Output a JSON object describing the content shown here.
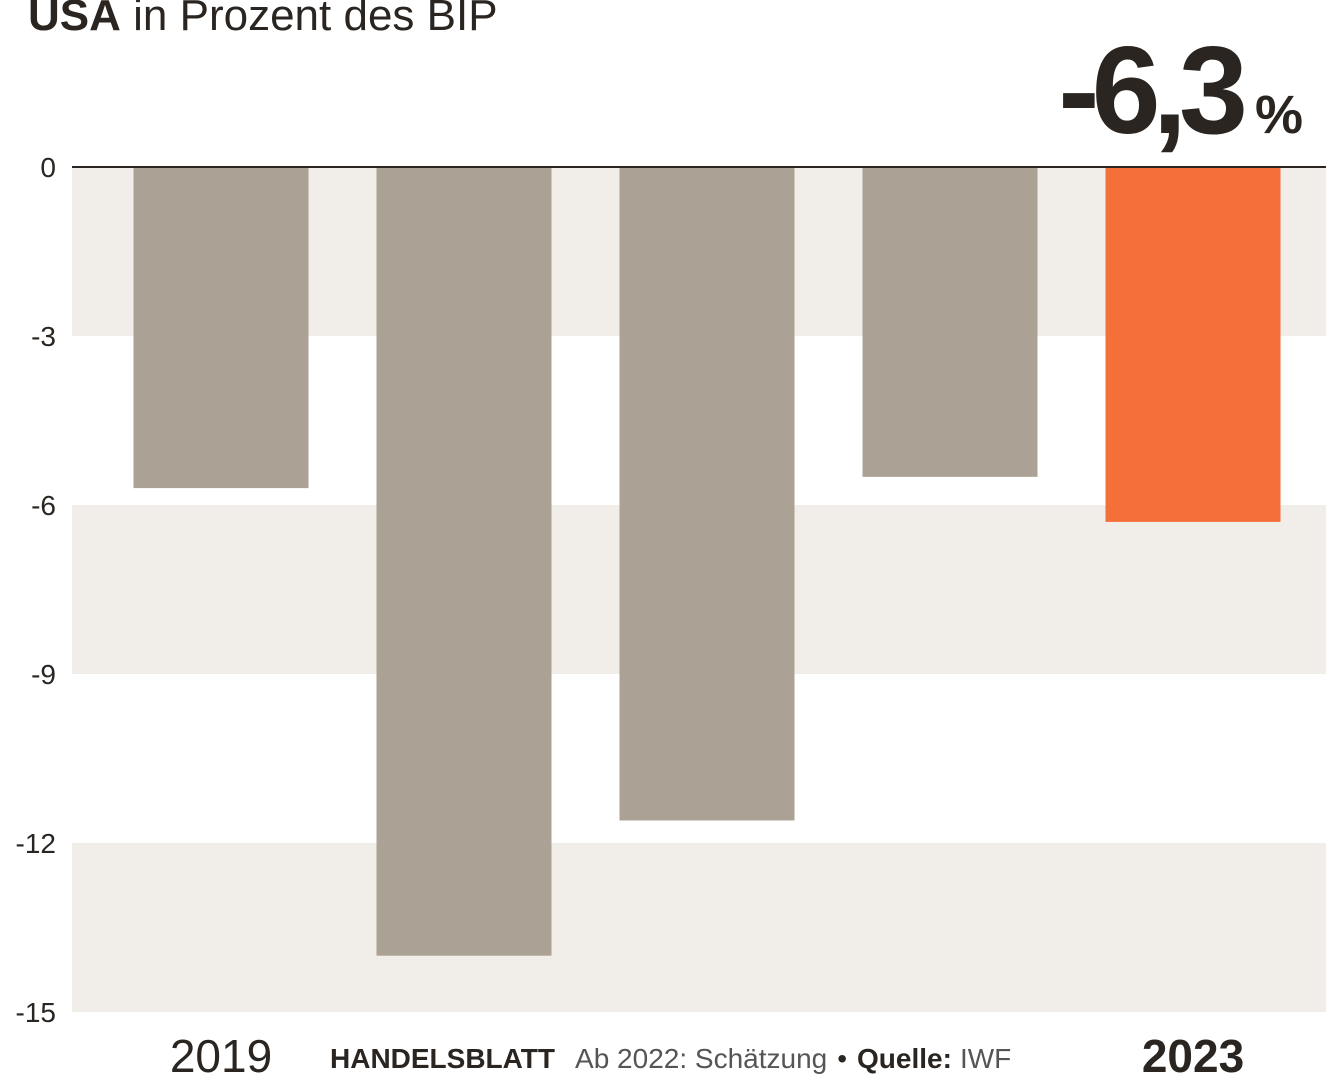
{
  "chart_data": {
    "type": "bar",
    "title_bold": "USA",
    "title": "in Prozent des BIP",
    "categories": [
      "2019",
      null,
      null,
      null,
      "2023"
    ],
    "values": [
      -5.7,
      -14.0,
      -11.6,
      -5.5,
      -6.3
    ],
    "value_labels": [
      null,
      null,
      null,
      null,
      "-6,3 %"
    ],
    "colors": [
      "#aba194",
      "#aba194",
      "#aba194",
      "#aba194",
      "#f47038"
    ],
    "ylim": [
      -15,
      0
    ],
    "yticks": [
      0,
      -3,
      -6,
      -9,
      -12,
      -15
    ],
    "banded_background": true,
    "footer": {
      "brand": "HANDELSBLATT",
      "note": "Ab 2022: Schätzung",
      "separator": "•",
      "source_label": "Quelle:",
      "source": "IWF"
    }
  }
}
